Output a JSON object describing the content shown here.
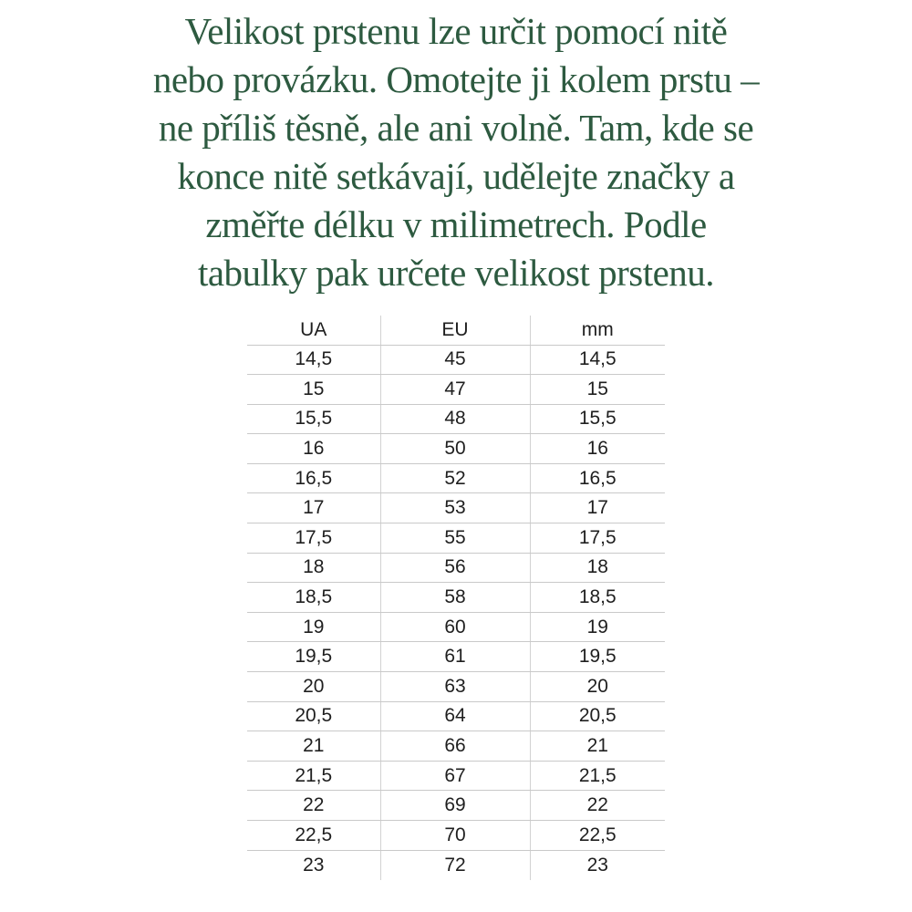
{
  "intro": {
    "lines": [
      "Velikost prstenu lze určit pomocí nitě",
      "nebo provázku. Omotejte ji kolem prstu –",
      "ne příliš těsně, ale ani volně. Tam, kde se",
      "konce nitě setkávají, udělejte značky a",
      "změřte délku v milimetrech. Podle",
      "tabulky pak určete velikost prstenu."
    ]
  },
  "table": {
    "headers": [
      "UA",
      "EU",
      "mm"
    ],
    "rows": [
      [
        "14,5",
        "45",
        "14,5"
      ],
      [
        "15",
        "47",
        "15"
      ],
      [
        "15,5",
        "48",
        "15,5"
      ],
      [
        "16",
        "50",
        "16"
      ],
      [
        "16,5",
        "52",
        "16,5"
      ],
      [
        "17",
        "53",
        "17"
      ],
      [
        "17,5",
        "55",
        "17,5"
      ],
      [
        "18",
        "56",
        "18"
      ],
      [
        "18,5",
        "58",
        "18,5"
      ],
      [
        "19",
        "60",
        "19"
      ],
      [
        "19,5",
        "61",
        "19,5"
      ],
      [
        "20",
        "63",
        "20"
      ],
      [
        "20,5",
        "64",
        "20,5"
      ],
      [
        "21",
        "66",
        "21"
      ],
      [
        "21,5",
        "67",
        "21,5"
      ],
      [
        "22",
        "69",
        "22"
      ],
      [
        "22,5",
        "70",
        "22,5"
      ],
      [
        "23",
        "72",
        "23"
      ]
    ]
  },
  "colors": {
    "heading_green": "#2d5a40",
    "table_text": "#1f1f1f",
    "table_border": "#c9c9c9",
    "background": "#ffffff"
  }
}
